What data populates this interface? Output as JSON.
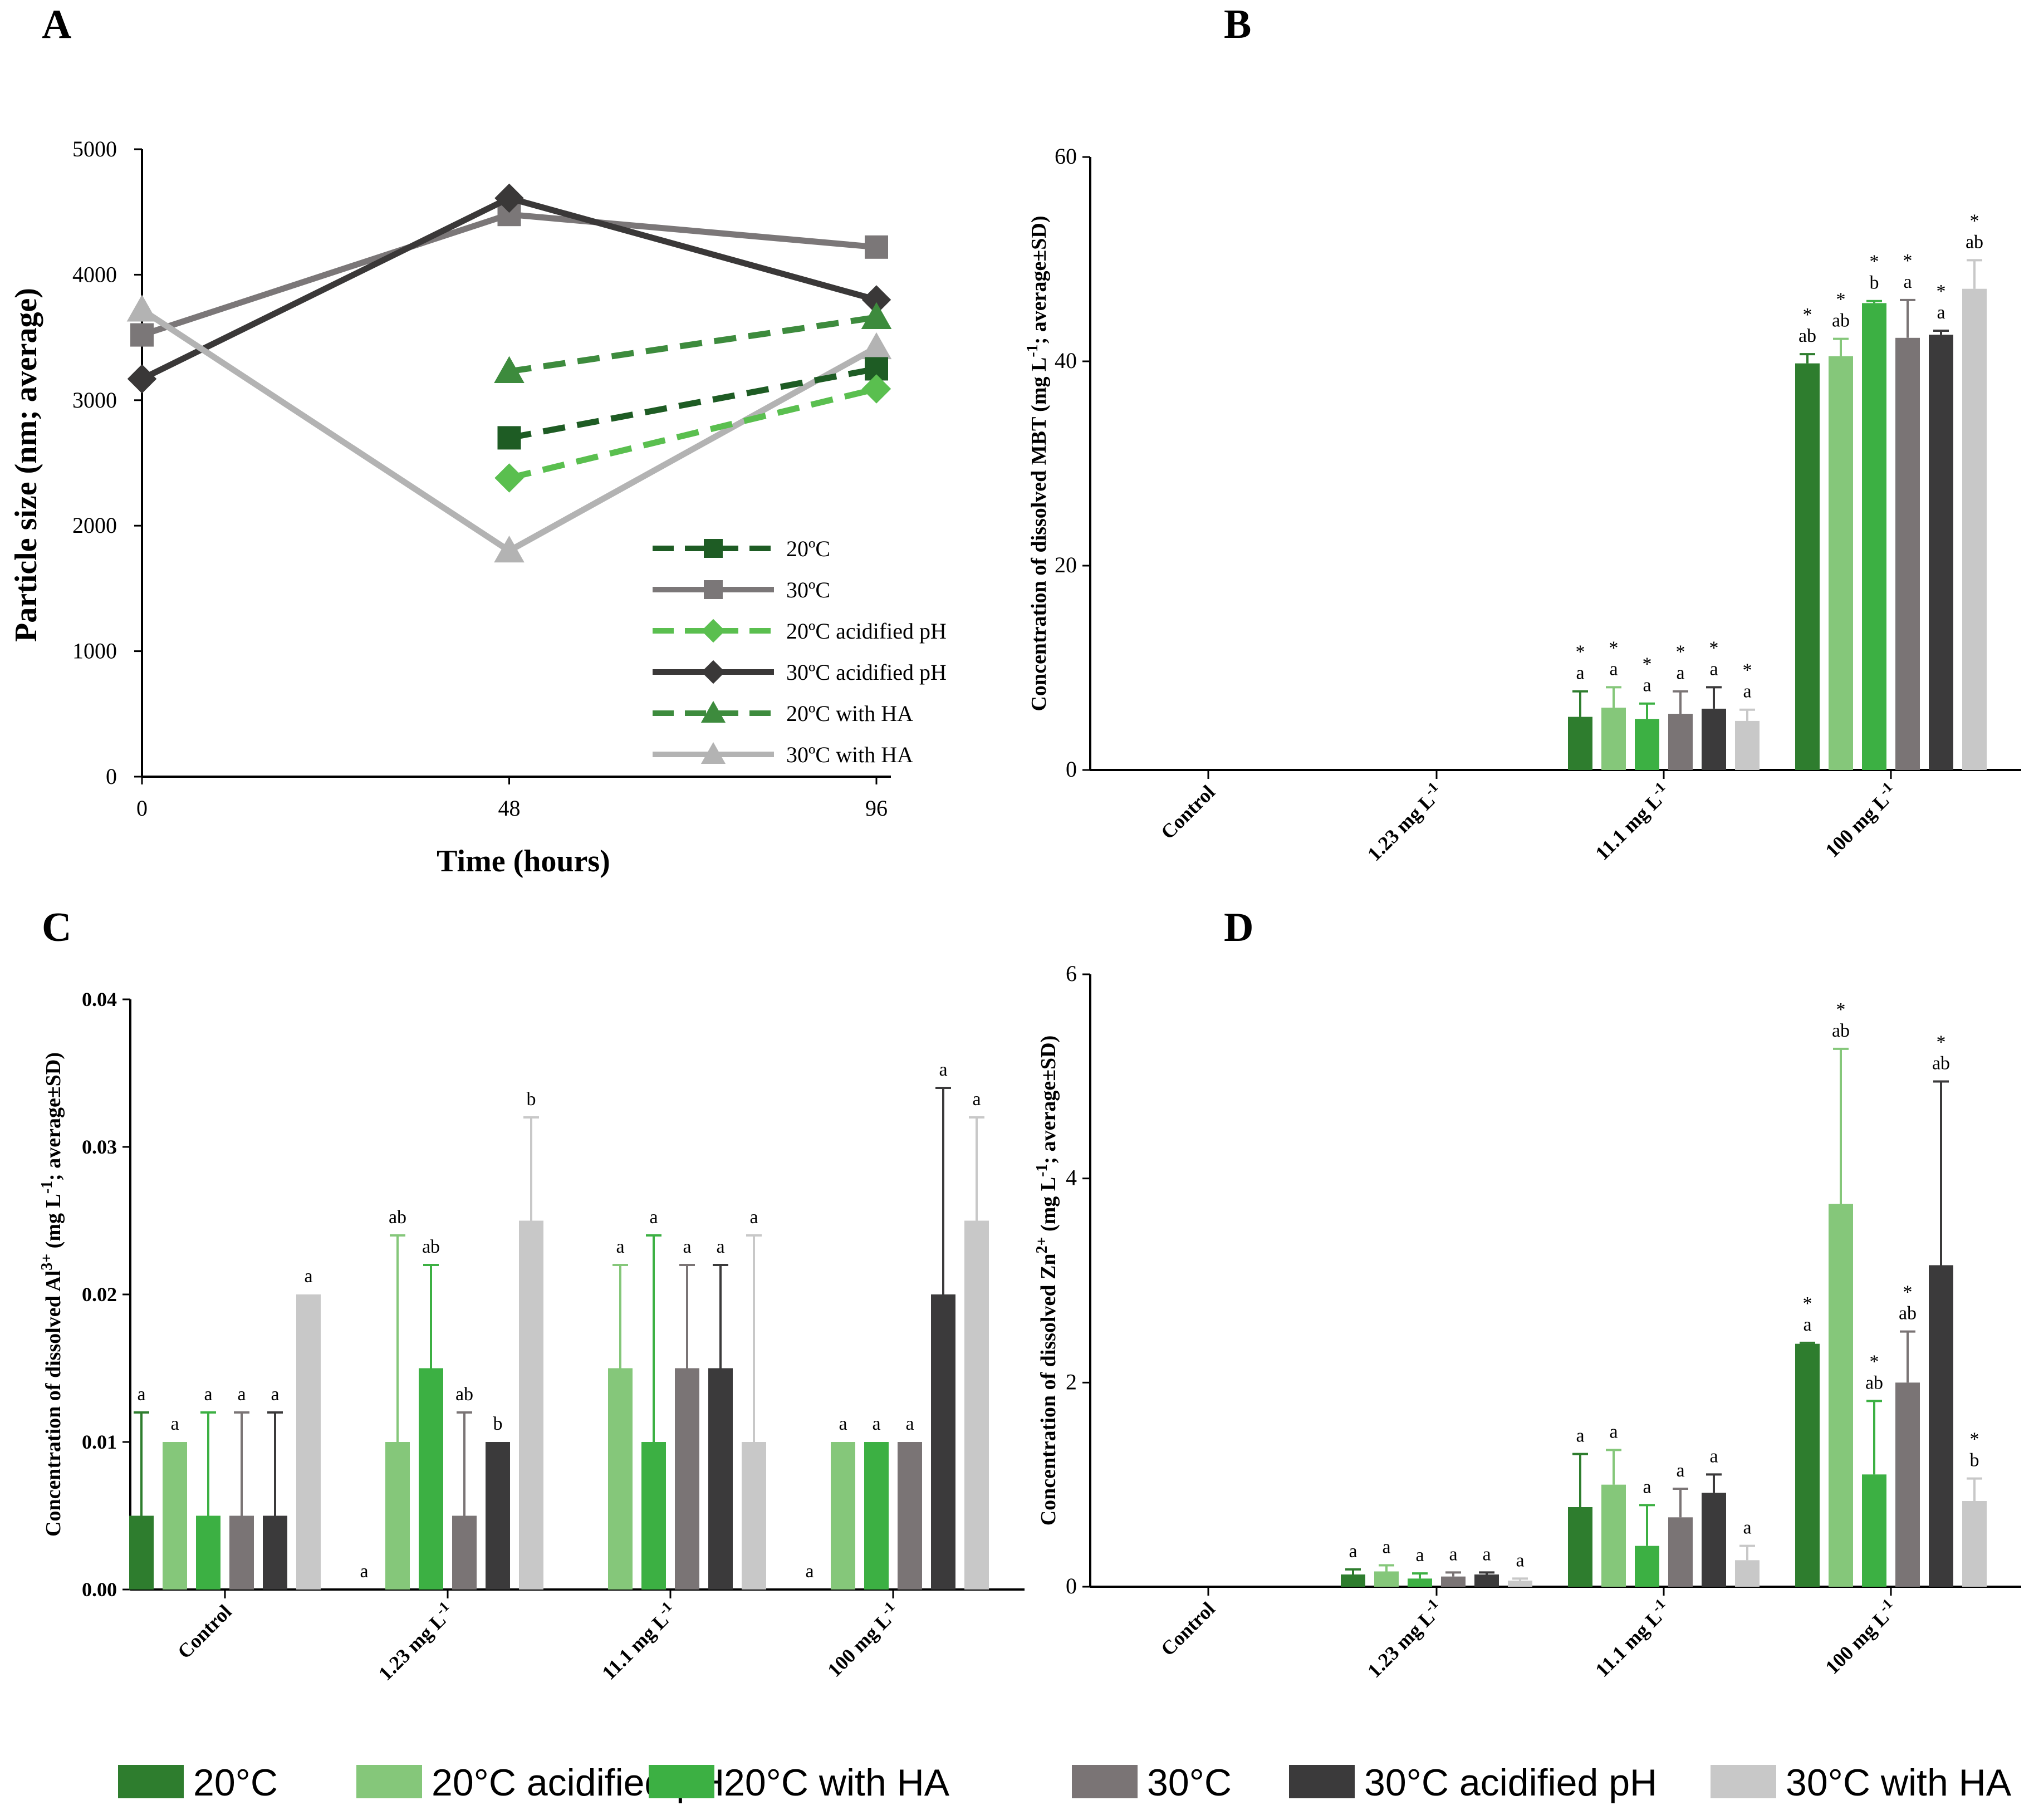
{
  "colors": {
    "c20": "#2e7d2e",
    "c20pH": "#85c77a",
    "c20HA": "#3cb043",
    "c30": "#7a7475",
    "c30pH": "#3b3a3b",
    "c30HA": "#c8c8c8",
    "lineA30": "#7b7778",
    "lineA30pH": "#3a3838",
    "lineA30HA": "#b3b3b3",
    "lineA20": "#1e5c24",
    "lineA20pH": "#5abf4f",
    "lineA20HA": "#3d8b3d"
  },
  "panels": {
    "A": "A",
    "B": "B",
    "C": "C",
    "D": "D"
  },
  "bottom_legend": [
    {
      "label": "20°C",
      "color_key": "c20"
    },
    {
      "label": "20°C acidified pH",
      "color_key": "c20pH"
    },
    {
      "label": "20°C with HA",
      "color_key": "c20HA"
    },
    {
      "label": "30°C",
      "color_key": "c30"
    },
    {
      "label": "30°C  acidified pH",
      "color_key": "c30pH"
    },
    {
      "label": "30°C with HA",
      "color_key": "c30HA"
    }
  ],
  "chart_data": [
    {
      "panel": "A",
      "type": "line",
      "xlabel": "Time (hours)",
      "ylabel": "Particle size (nm; average)",
      "x_ticks": [
        "0",
        "48",
        "96"
      ],
      "y_ticks": [
        "0",
        "1000",
        "2000",
        "3000",
        "4000",
        "5000"
      ],
      "ylim": [
        0,
        5000
      ],
      "series": [
        {
          "name": "20ºC",
          "dashed": true,
          "marker": "square",
          "color_key": "lineA20",
          "x": [
            48,
            96
          ],
          "values": [
            2700,
            3250
          ]
        },
        {
          "name": "30ºC",
          "dashed": false,
          "marker": "square",
          "color_key": "lineA30",
          "x": [
            0,
            48,
            96
          ],
          "values": [
            3520,
            4480,
            4220
          ]
        },
        {
          "name": "20ºC acidified pH",
          "dashed": true,
          "marker": "diamond",
          "color_key": "lineA20pH",
          "x": [
            48,
            96
          ],
          "values": [
            2380,
            3090
          ]
        },
        {
          "name": "30ºC acidified pH",
          "dashed": false,
          "marker": "diamond",
          "color_key": "lineA30pH",
          "x": [
            0,
            48,
            96
          ],
          "values": [
            3170,
            4610,
            3800
          ]
        },
        {
          "name": "20ºC with HA",
          "dashed": true,
          "marker": "triangle",
          "color_key": "lineA20HA",
          "x": [
            48,
            96
          ],
          "values": [
            3230,
            3660
          ]
        },
        {
          "name": "30ºC with HA",
          "dashed": false,
          "marker": "triangle",
          "color_key": "lineA30HA",
          "x": [
            0,
            48,
            96
          ],
          "values": [
            3720,
            1800,
            3420
          ]
        }
      ]
    },
    {
      "panel": "B",
      "type": "bar",
      "ylabel_parts": [
        "Concentration of dissolved MBT (mg L",
        "-1",
        "; average±SD)"
      ],
      "categories": [
        [
          "Control",
          ""
        ],
        [
          "1.23 mg L",
          "-1"
        ],
        [
          "11.1 mg L",
          "-1"
        ],
        [
          "100 mg L",
          "-1"
        ]
      ],
      "y_ticks": [
        "0",
        "20",
        "40",
        "60"
      ],
      "ylim": [
        0,
        60
      ],
      "series_names": [
        "20°C",
        "20°C acidified pH",
        "20°C with HA",
        "30°C",
        "30°C acidified pH",
        "30°C with HA"
      ],
      "values": [
        [
          0,
          0,
          0,
          0,
          0,
          0
        ],
        [
          0,
          0,
          0,
          0,
          0,
          0
        ],
        [
          5.2,
          6.1,
          5.0,
          5.5,
          6.0,
          4.8
        ],
        [
          39.8,
          40.5,
          45.7,
          42.3,
          42.6,
          47.1
        ]
      ],
      "errors": [
        [
          0,
          0,
          0,
          0,
          0,
          0
        ],
        [
          0,
          0,
          0,
          0,
          0,
          0
        ],
        [
          2.5,
          2.0,
          1.5,
          2.2,
          2.1,
          1.1
        ],
        [
          0.9,
          1.7,
          0.2,
          3.7,
          0.4,
          2.8
        ]
      ],
      "labels": [
        [
          "",
          "",
          "",
          "",
          "",
          ""
        ],
        [
          "",
          "",
          "",
          "",
          "",
          ""
        ],
        [
          [
            "*",
            "a"
          ],
          [
            "*",
            "a"
          ],
          [
            "*",
            "a"
          ],
          [
            "*",
            "a"
          ],
          [
            "*",
            "a"
          ],
          [
            "*",
            "a"
          ]
        ],
        [
          [
            "*",
            "ab"
          ],
          [
            "*",
            "ab"
          ],
          [
            "*",
            "b"
          ],
          [
            "*",
            "a"
          ],
          [
            "*",
            "a"
          ],
          [
            "*",
            "ab"
          ]
        ]
      ]
    },
    {
      "panel": "C",
      "type": "bar",
      "ylabel_parts": [
        "Concentration of dissolved Al",
        "3+",
        " (mg L",
        "-1",
        "; average±SD)"
      ],
      "categories": [
        [
          "Control",
          ""
        ],
        [
          "1.23 mg L",
          "-1"
        ],
        [
          "11.1 mg L",
          "-1"
        ],
        [
          "100 mg L",
          "-1"
        ]
      ],
      "y_ticks": [
        "0.00",
        "0.01",
        "0.02",
        "0.03",
        "0.04"
      ],
      "ylim": [
        0,
        0.04
      ],
      "series_names": [
        "20°C",
        "20°C acidified pH",
        "20°C with HA",
        "30°C",
        "30°C acidified pH",
        "30°C with HA"
      ],
      "values": [
        [
          0.005,
          0.01,
          0.005,
          0.005,
          0.005,
          0.02
        ],
        [
          0.0,
          0.01,
          0.015,
          0.005,
          0.01,
          0.025
        ],
        [
          0.0,
          0.015,
          0.01,
          0.015,
          0.015,
          0.01
        ],
        [
          0.0,
          0.01,
          0.01,
          0.01,
          0.02,
          0.025
        ]
      ],
      "errors": [
        [
          0.007,
          0.0,
          0.007,
          0.007,
          0.007,
          0.0
        ],
        [
          0.0,
          0.014,
          0.007,
          0.007,
          0.0,
          0.007
        ],
        [
          0.0,
          0.007,
          0.014,
          0.007,
          0.007,
          0.014
        ],
        [
          0.0,
          0.0,
          0.0,
          0.0,
          0.014,
          0.007
        ]
      ],
      "labels": [
        [
          [
            "a"
          ],
          [
            "a"
          ],
          [
            "a"
          ],
          [
            "a"
          ],
          [
            "a"
          ],
          [
            "a"
          ]
        ],
        [
          [
            "a"
          ],
          [
            "ab"
          ],
          [
            "ab"
          ],
          [
            "ab"
          ],
          [
            "b"
          ],
          [
            "b"
          ]
        ],
        [
          [
            ""
          ],
          [
            "a"
          ],
          [
            "a"
          ],
          [
            "a"
          ],
          [
            "a"
          ],
          [
            "a"
          ]
        ],
        [
          [
            "a"
          ],
          [
            "a"
          ],
          [
            "a"
          ],
          [
            "a"
          ],
          [
            "a"
          ],
          [
            "a"
          ]
        ]
      ]
    },
    {
      "panel": "D",
      "type": "bar",
      "ylabel_parts": [
        "Concentration of dissolved Zn",
        "2+",
        " (mg L",
        "-1",
        "; average±SD)"
      ],
      "categories": [
        [
          "Control",
          ""
        ],
        [
          "1.23 mg L",
          "-1"
        ],
        [
          "11.1 mg L",
          "-1"
        ],
        [
          "100 mg L",
          "-1"
        ]
      ],
      "y_ticks": [
        "0",
        "2",
        "4",
        "6"
      ],
      "ylim": [
        0,
        6
      ],
      "series_names": [
        "20°C",
        "20°C acidified pH",
        "20°C with HA",
        "30°C",
        "30°C acidified pH",
        "30°C with HA"
      ],
      "values": [
        [
          0,
          0,
          0,
          0,
          0,
          0
        ],
        [
          0.12,
          0.15,
          0.08,
          0.1,
          0.12,
          0.06
        ],
        [
          0.78,
          1.0,
          0.4,
          0.68,
          0.92,
          0.26
        ],
        [
          2.38,
          3.75,
          1.1,
          2.0,
          3.15,
          0.84
        ]
      ],
      "errors": [
        [
          0,
          0,
          0,
          0,
          0,
          0
        ],
        [
          0.05,
          0.06,
          0.05,
          0.04,
          0.02,
          0.02
        ],
        [
          0.52,
          0.34,
          0.4,
          0.28,
          0.18,
          0.14
        ],
        [
          0.01,
          1.52,
          0.72,
          0.5,
          1.8,
          0.22
        ]
      ],
      "labels": [
        [
          "",
          "",
          "",
          "",
          "",
          ""
        ],
        [
          [
            "a"
          ],
          [
            "a"
          ],
          [
            "a"
          ],
          [
            "a"
          ],
          [
            "a"
          ],
          [
            "a"
          ]
        ],
        [
          [
            "a"
          ],
          [
            "a"
          ],
          [
            "a"
          ],
          [
            "a"
          ],
          [
            "a"
          ],
          [
            "a"
          ]
        ],
        [
          [
            "*",
            "a"
          ],
          [
            "*",
            "ab"
          ],
          [
            "*",
            "ab"
          ],
          [
            "*",
            "ab"
          ],
          [
            "*",
            "ab"
          ],
          [
            "*",
            "b"
          ]
        ]
      ]
    }
  ]
}
